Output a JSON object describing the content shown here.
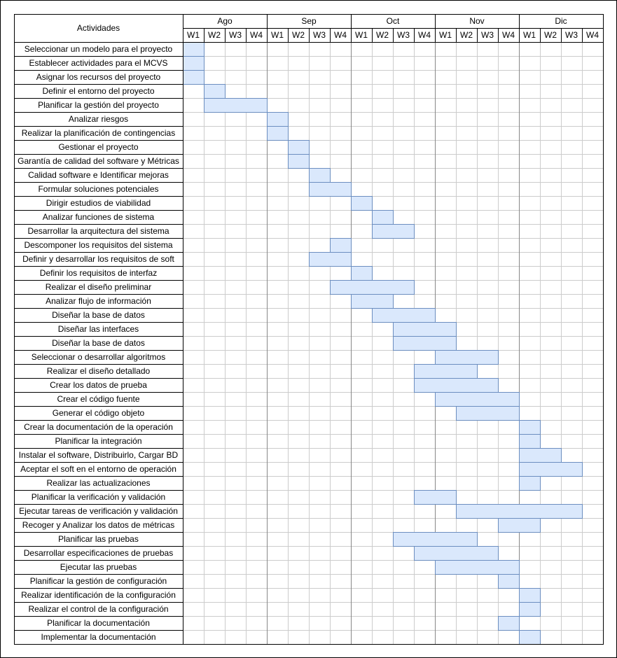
{
  "chart_data": {
    "type": "gantt",
    "activities_header": "Actividades",
    "months": [
      {
        "label": "Ago",
        "weeks": [
          "W1",
          "W2",
          "W3",
          "W4"
        ]
      },
      {
        "label": "Sep",
        "weeks": [
          "W1",
          "W2",
          "W3",
          "W4"
        ]
      },
      {
        "label": "Oct",
        "weeks": [
          "W1",
          "W2",
          "W3",
          "W4"
        ]
      },
      {
        "label": "Nov",
        "weeks": [
          "W1",
          "W2",
          "W3",
          "W4"
        ]
      },
      {
        "label": "Dic",
        "weeks": [
          "W1",
          "W2",
          "W3",
          "W4"
        ]
      }
    ],
    "tasks": [
      {
        "name": "Seleccionar un modelo para el proyecto",
        "start": "Ago W1",
        "end": "Ago W1",
        "start_week": 1,
        "end_week": 1
      },
      {
        "name": "Establecer actividades para el MCVS",
        "start": "Ago W1",
        "end": "Ago W1",
        "start_week": 1,
        "end_week": 1
      },
      {
        "name": "Asignar los recursos del proyecto",
        "start": "Ago W1",
        "end": "Ago W1",
        "start_week": 1,
        "end_week": 1
      },
      {
        "name": "Definir el entorno del proyecto",
        "start": "Ago W2",
        "end": "Ago W2",
        "start_week": 2,
        "end_week": 2
      },
      {
        "name": "Planificar la gestión del proyecto",
        "start": "Ago W2",
        "end": "Ago W4",
        "start_week": 2,
        "end_week": 4
      },
      {
        "name": "Analizar riesgos",
        "start": "Sep W1",
        "end": "Sep W1",
        "start_week": 5,
        "end_week": 5
      },
      {
        "name": "Realizar la planificación de contingencias",
        "start": "Sep W1",
        "end": "Sep W1",
        "start_week": 5,
        "end_week": 5
      },
      {
        "name": "Gestionar el proyecto",
        "start": "Sep W2",
        "end": "Sep W2",
        "start_week": 6,
        "end_week": 6
      },
      {
        "name": "Garantía de calidad del software y Métricas",
        "start": "Sep W2",
        "end": "Sep W2",
        "start_week": 6,
        "end_week": 6
      },
      {
        "name": "Calidad software e Identificar mejoras",
        "start": "Sep W3",
        "end": "Sep W3",
        "start_week": 7,
        "end_week": 7
      },
      {
        "name": "Formular soluciones potenciales",
        "start": "Sep W3",
        "end": "Sep W4",
        "start_week": 7,
        "end_week": 8
      },
      {
        "name": "Dirigir estudios de viabilidad",
        "start": "Oct W1",
        "end": "Oct W1",
        "start_week": 9,
        "end_week": 9
      },
      {
        "name": "Analizar funciones de sistema",
        "start": "Oct W2",
        "end": "Oct W2",
        "start_week": 10,
        "end_week": 10
      },
      {
        "name": "Desarrollar la arquitectura del sistema",
        "start": "Oct W2",
        "end": "Oct W3",
        "start_week": 10,
        "end_week": 11
      },
      {
        "name": "Descomponer los requisitos del sistema",
        "start": "Sep W4",
        "end": "Sep W4",
        "start_week": 8,
        "end_week": 8
      },
      {
        "name": "Definir y desarrollar los requisitos de soft",
        "start": "Sep W3",
        "end": "Sep W4",
        "start_week": 7,
        "end_week": 8
      },
      {
        "name": "Definir los requisitos de interfaz",
        "start": "Oct W1",
        "end": "Oct W1",
        "start_week": 9,
        "end_week": 9
      },
      {
        "name": "Realizar el diseño preliminar",
        "start": "Sep W4",
        "end": "Oct W3",
        "start_week": 8,
        "end_week": 11
      },
      {
        "name": "Analizar flujo de información",
        "start": "Oct W1",
        "end": "Oct W2",
        "start_week": 9,
        "end_week": 10
      },
      {
        "name": "Diseñar la base de datos",
        "start": "Oct W2",
        "end": "Oct W4",
        "start_week": 10,
        "end_week": 12
      },
      {
        "name": "Diseñar las interfaces",
        "start": "Oct W3",
        "end": "Nov W1",
        "start_week": 11,
        "end_week": 13
      },
      {
        "name": "Diseñar la base de datos",
        "start": "Oct W3",
        "end": "Nov W1",
        "start_week": 11,
        "end_week": 13
      },
      {
        "name": "Seleccionar o desarrollar algoritmos",
        "start": "Nov W1",
        "end": "Nov W3",
        "start_week": 13,
        "end_week": 15
      },
      {
        "name": "Realizar el diseño detallado",
        "start": "Oct W4",
        "end": "Nov W2",
        "start_week": 12,
        "end_week": 14
      },
      {
        "name": "Crear los datos de prueba",
        "start": "Oct W4",
        "end": "Nov W3",
        "start_week": 12,
        "end_week": 15
      },
      {
        "name": "Crear el código fuente",
        "start": "Nov W1",
        "end": "Nov W4",
        "start_week": 13,
        "end_week": 16
      },
      {
        "name": "Generar el código objeto",
        "start": "Nov W2",
        "end": "Nov W4",
        "start_week": 14,
        "end_week": 16
      },
      {
        "name": "Crear la documentación de la operación",
        "start": "Dic W1",
        "end": "Dic W1",
        "start_week": 17,
        "end_week": 17
      },
      {
        "name": "Planificar la integración",
        "start": "Dic W1",
        "end": "Dic W1",
        "start_week": 17,
        "end_week": 17
      },
      {
        "name": "Instalar el software, Distribuirlo, Cargar BD",
        "start": "Dic W1",
        "end": "Dic W2",
        "start_week": 17,
        "end_week": 18
      },
      {
        "name": "Aceptar el soft en el entorno de operación",
        "start": "Dic W1",
        "end": "Dic W3",
        "start_week": 17,
        "end_week": 19
      },
      {
        "name": "Realizar las actualizaciones",
        "start": "Dic W1",
        "end": "Dic W1",
        "start_week": 17,
        "end_week": 17
      },
      {
        "name": "Planificar la verificación y validación",
        "start": "Oct W4",
        "end": "Nov W1",
        "start_week": 12,
        "end_week": 13
      },
      {
        "name": "Ejecutar tareas de verificación y validación",
        "start": "Nov W2",
        "end": "Dic W3",
        "start_week": 14,
        "end_week": 19
      },
      {
        "name": "Recoger y Analizar los datos de métricas",
        "start": "Nov W4",
        "end": "Dic W1",
        "start_week": 16,
        "end_week": 17
      },
      {
        "name": "Planificar las pruebas",
        "start": "Oct W3",
        "end": "Nov W2",
        "start_week": 11,
        "end_week": 14
      },
      {
        "name": "Desarrollar especificaciones de pruebas",
        "start": "Oct W4",
        "end": "Nov W3",
        "start_week": 12,
        "end_week": 15
      },
      {
        "name": "Ejecutar las pruebas",
        "start": "Nov W1",
        "end": "Nov W4",
        "start_week": 13,
        "end_week": 16
      },
      {
        "name": "Planificar la gestión de configuración",
        "start": "Nov W4",
        "end": "Nov W4",
        "start_week": 16,
        "end_week": 16
      },
      {
        "name": "Realizar identificación de la configuración",
        "start": "Dic W1",
        "end": "Dic W1",
        "start_week": 17,
        "end_week": 17
      },
      {
        "name": "Realizar el control de la configuración",
        "start": "Dic W1",
        "end": "Dic W1",
        "start_week": 17,
        "end_week": 17
      },
      {
        "name": "Planificar la documentación",
        "start": "Nov W4",
        "end": "Nov W4",
        "start_week": 16,
        "end_week": 16
      },
      {
        "name": "Implementar la documentación",
        "start": "Dic W1",
        "end": "Dic W1",
        "start_week": 17,
        "end_week": 17
      }
    ]
  },
  "colors": {
    "bar_fill": "#dae8fc",
    "bar_stroke": "#6c8ebf",
    "grid_light": "#cccccc",
    "grid_dark": "#000000",
    "month_divider": "#888888"
  }
}
